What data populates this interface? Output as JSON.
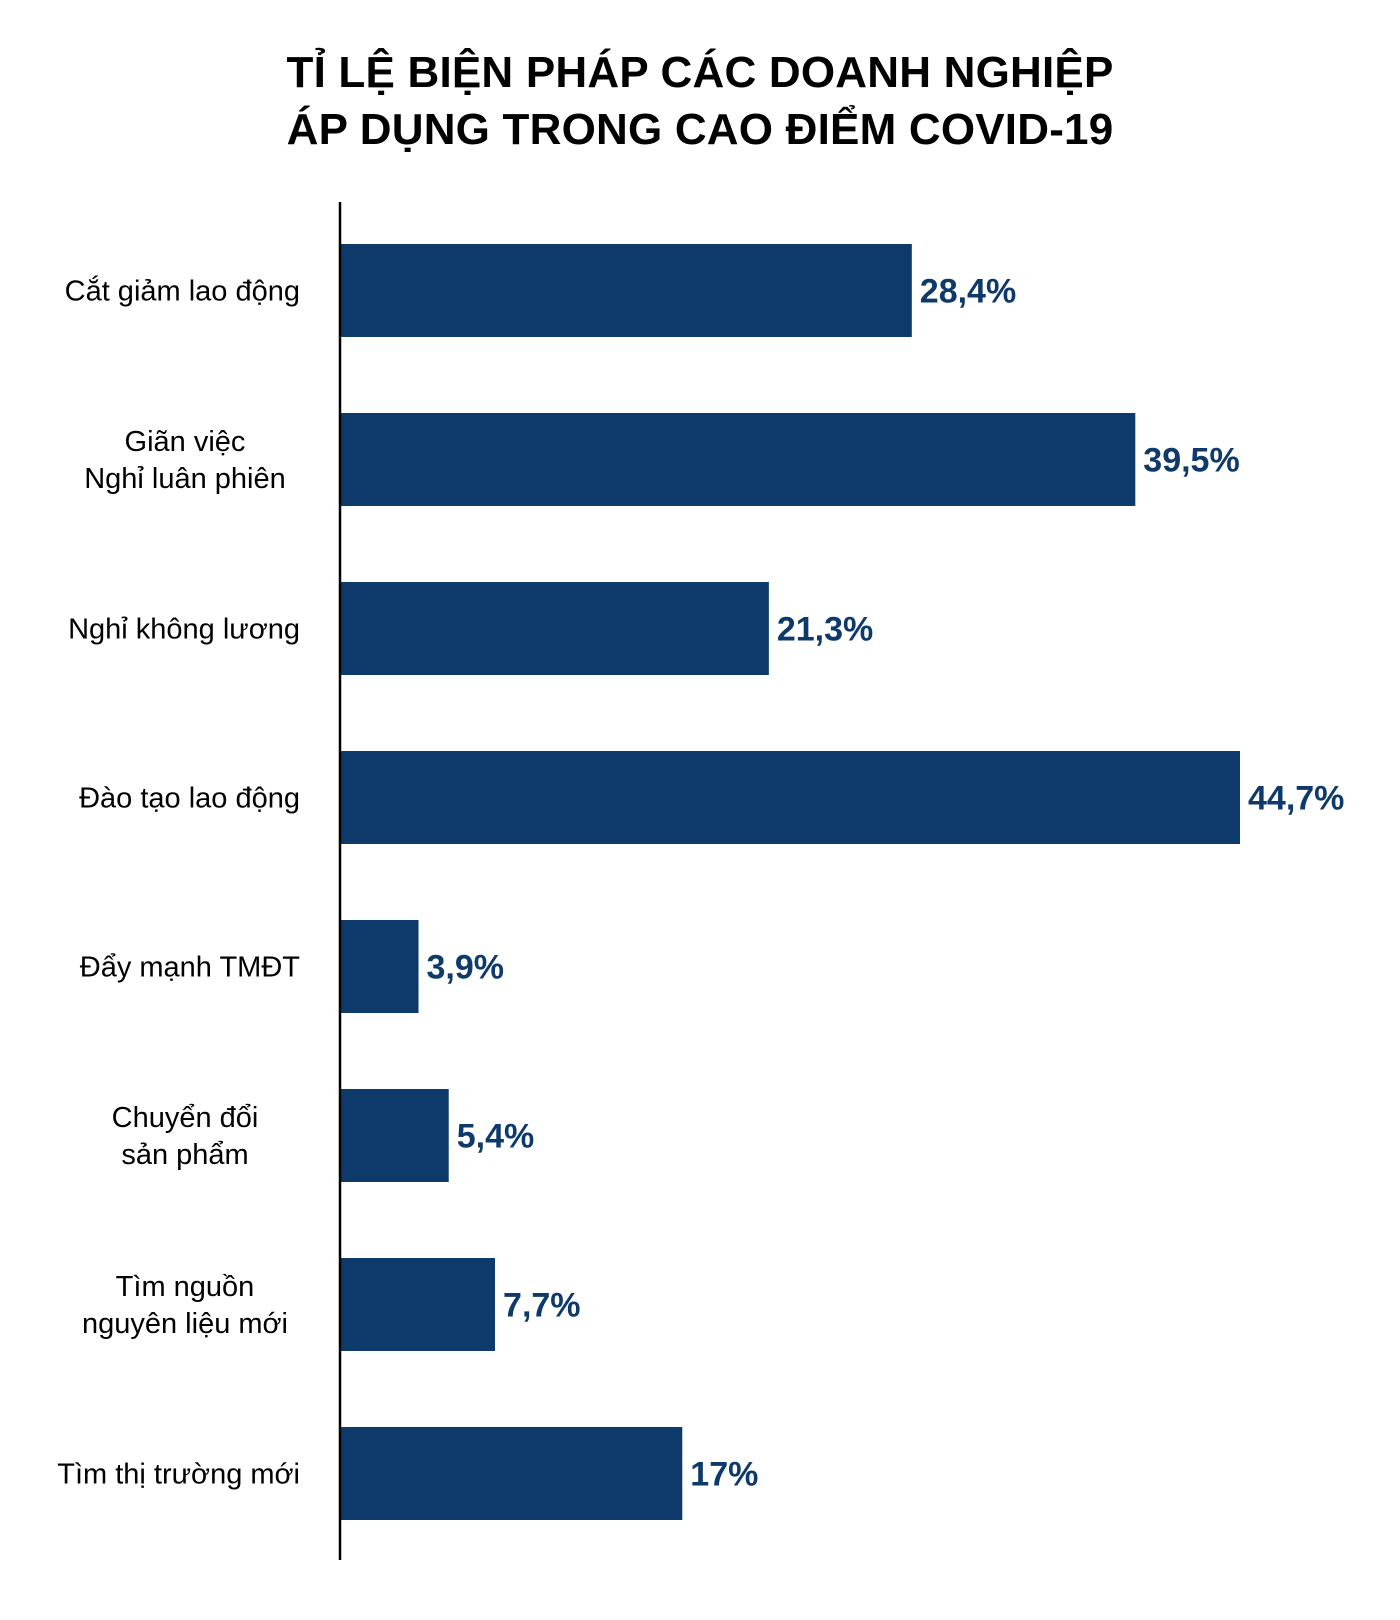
{
  "chart_data": {
    "type": "bar",
    "orientation": "horizontal",
    "title_lines": [
      "TỈ LỆ BIỆN PHÁP CÁC DOANH NGHIỆP",
      "ÁP DỤNG TRONG CAO ĐIỂM COVID-19"
    ],
    "categories": [
      [
        "Cắt giảm lao động"
      ],
      [
        "Giãn việc",
        "Nghỉ luân phiên"
      ],
      [
        "Nghỉ không lương"
      ],
      [
        "Đào tạo lao động"
      ],
      [
        "Đẩy mạnh TMĐT"
      ],
      [
        "Chuyển đổi",
        "sản phẩm"
      ],
      [
        "Tìm nguồn",
        "nguyên liệu mới"
      ],
      [
        "Tìm thị trường mới"
      ]
    ],
    "values": [
      28.4,
      39.5,
      21.3,
      44.7,
      3.9,
      5.4,
      7.7,
      17
    ],
    "value_labels": [
      "28,4%",
      "39,5%",
      "21,3%",
      "44,7%",
      "3,9%",
      "5,4%",
      "7,7%",
      "17%"
    ],
    "unit": "%",
    "xlim": [
      0,
      44.7
    ],
    "bar_color": "#0d3a6b",
    "value_label_color": "#0d3a6b",
    "axis_color": "#000000",
    "grid": false,
    "legend": "none"
  }
}
